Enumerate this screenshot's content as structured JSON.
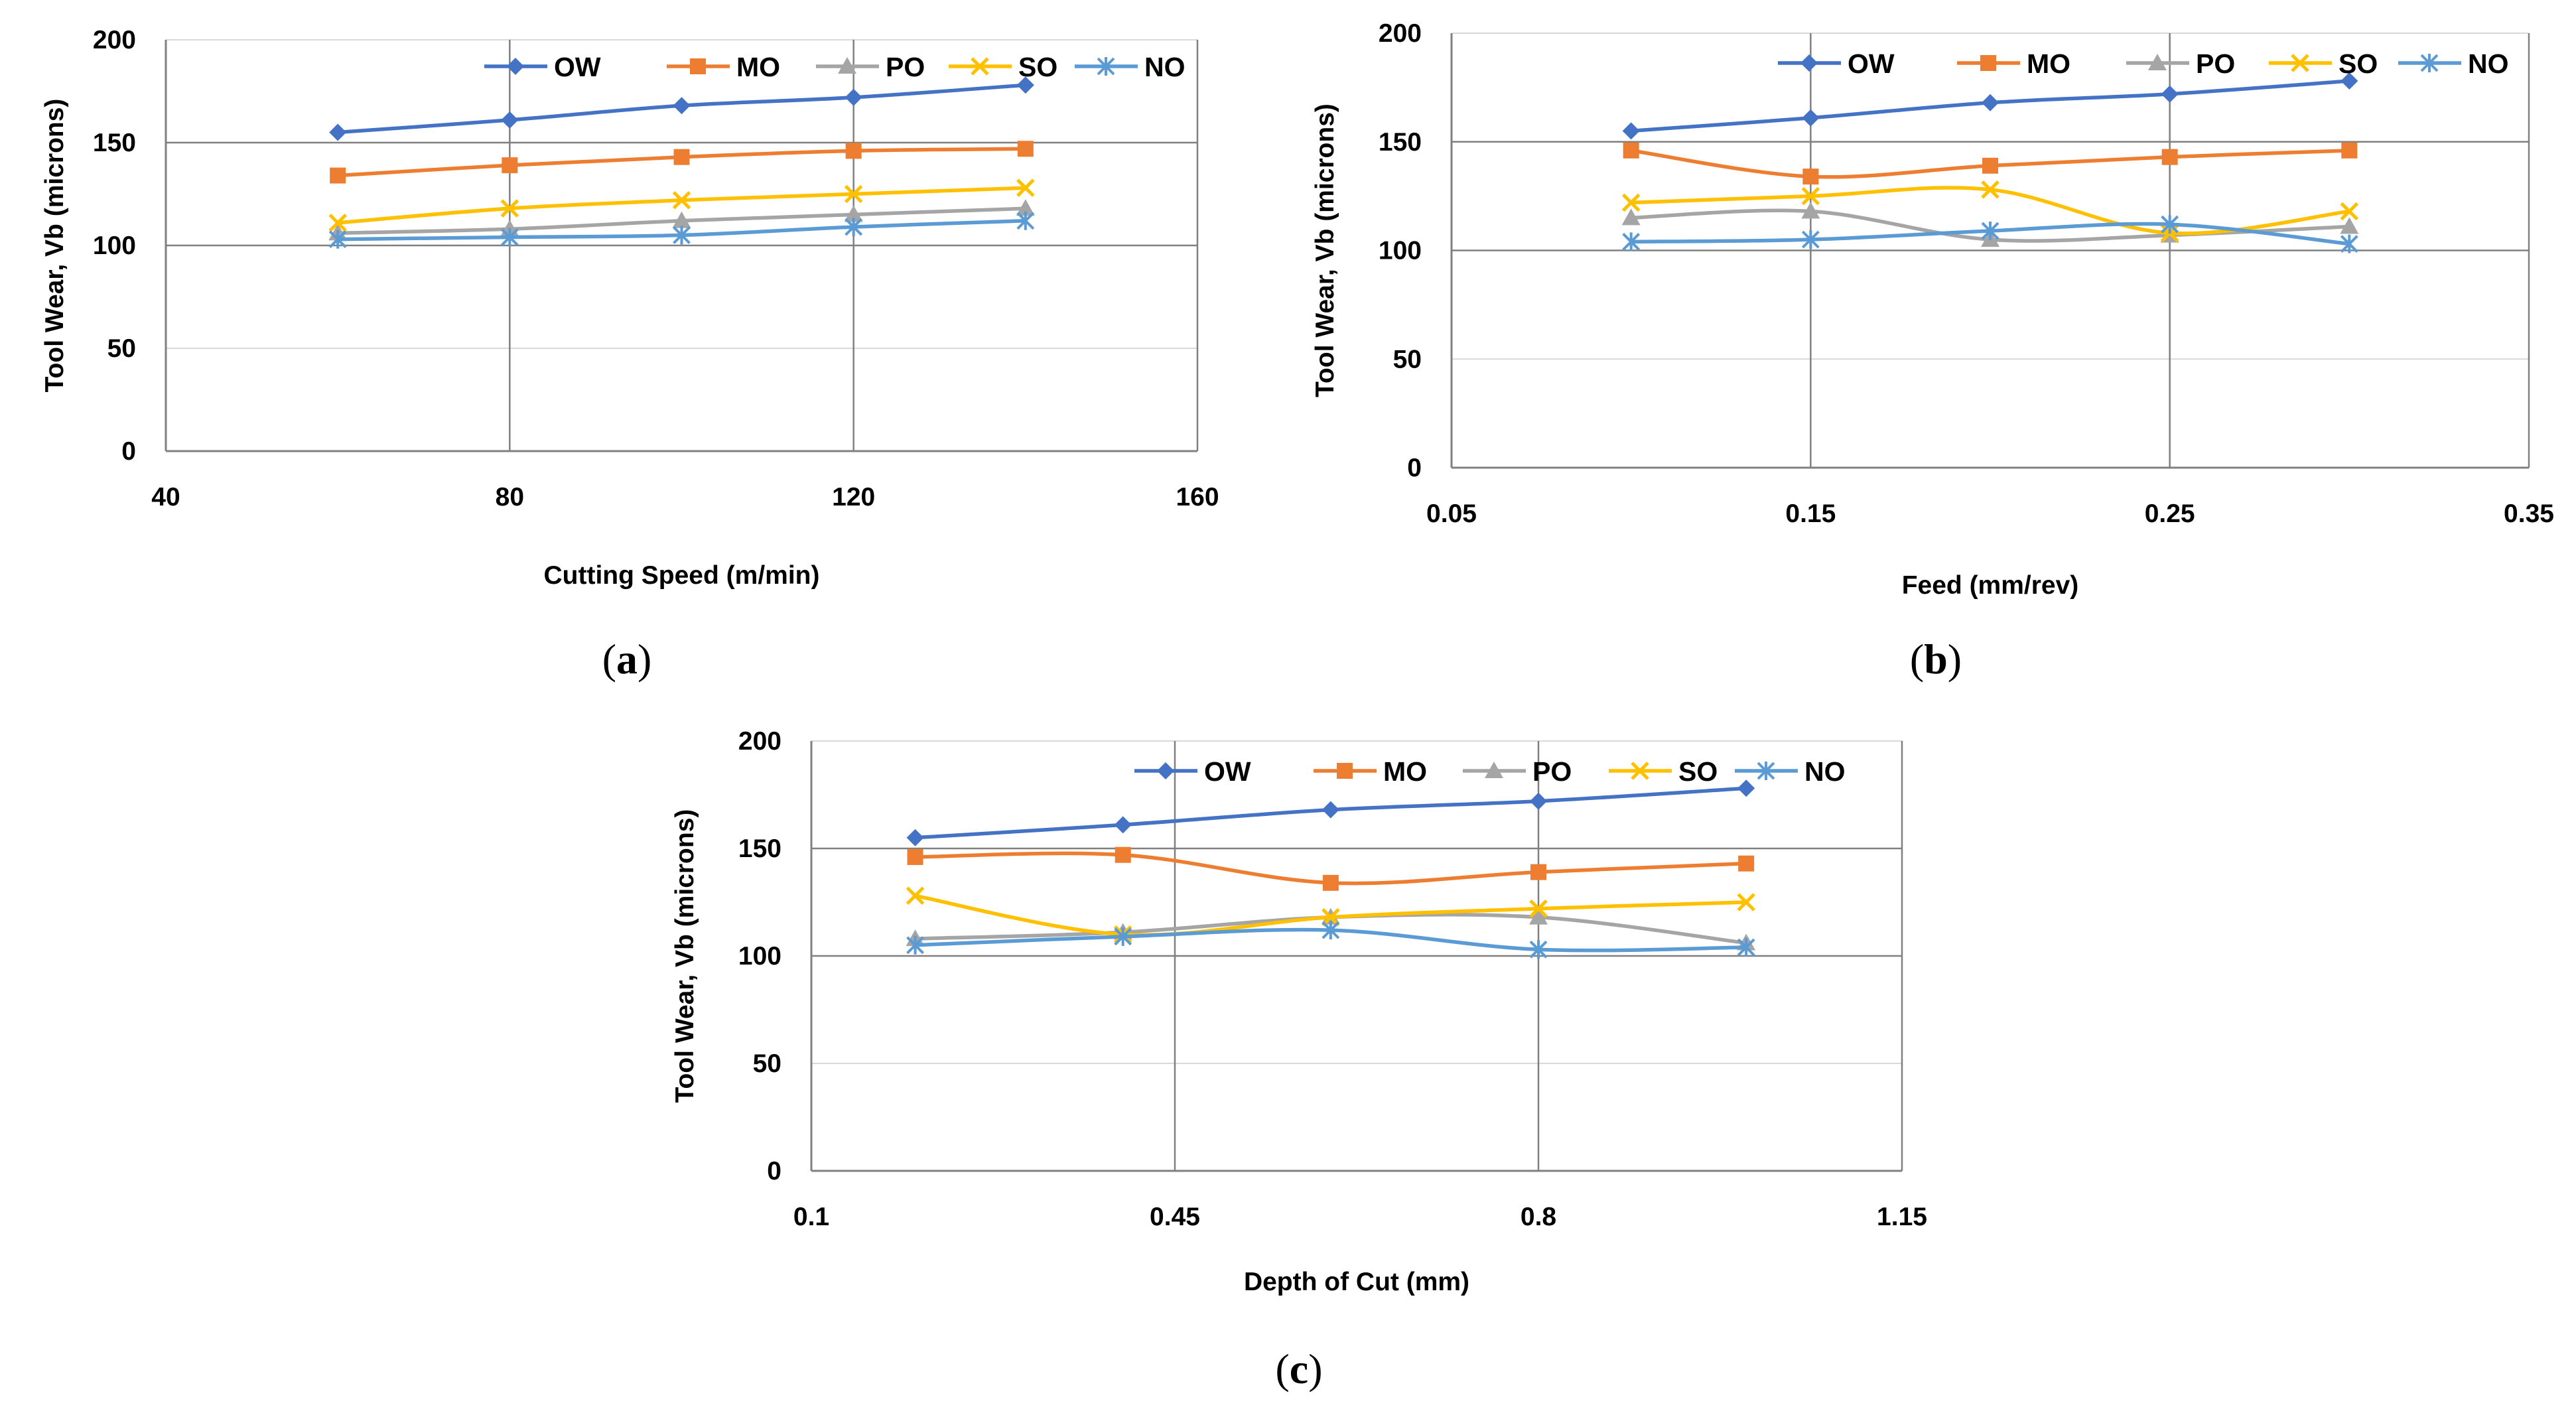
{
  "colors": {
    "OW": "#4472C4",
    "MO": "#ED7D31",
    "PO": "#A5A5A5",
    "SO": "#FFC000",
    "NO": "#5B9BD5",
    "grid": "#D9D9D9",
    "major_grid": "#808080"
  },
  "legend_order": [
    "OW",
    "MO",
    "PO",
    "SO",
    "NO"
  ],
  "markers": {
    "OW": "diamond",
    "MO": "square",
    "PO": "triangle",
    "SO": "x",
    "NO": "star"
  },
  "chart_data": [
    {
      "id": "a",
      "type": "line",
      "caption": "a",
      "xlabel": "Cutting Speed (m/min)",
      "ylabel": "Tool Wear, Vb (microns)",
      "xlim": [
        40,
        160
      ],
      "xticks": [
        "40",
        "80",
        "120",
        "160"
      ],
      "xtick_values": [
        40,
        80,
        120,
        160
      ],
      "ylim": [
        0,
        200
      ],
      "yticks": [
        "0",
        "50",
        "100",
        "150",
        "200"
      ],
      "ytick_values": [
        0,
        50,
        100,
        150,
        200
      ],
      "x": [
        60,
        80,
        100,
        120,
        140
      ],
      "series": [
        {
          "name": "OW",
          "values": [
            155,
            161,
            168,
            172,
            178
          ]
        },
        {
          "name": "MO",
          "values": [
            134,
            139,
            143,
            146,
            147
          ]
        },
        {
          "name": "PO",
          "values": [
            106,
            108,
            112,
            115,
            118
          ]
        },
        {
          "name": "SO",
          "values": [
            111,
            118,
            122,
            125,
            128
          ]
        },
        {
          "name": "NO",
          "values": [
            103,
            104,
            105,
            109,
            112
          ]
        }
      ]
    },
    {
      "id": "b",
      "type": "line",
      "caption": "b",
      "xlabel": "Feed (mm/rev)",
      "ylabel": "Tool Wear, Vb  (microns)",
      "xlim": [
        0.05,
        0.35
      ],
      "xticks": [
        "0.05",
        "0.15",
        "0.25",
        "0.35"
      ],
      "xtick_values": [
        0.05,
        0.15,
        0.25,
        0.35
      ],
      "ylim": [
        0,
        200
      ],
      "yticks": [
        "0",
        "50",
        "100",
        "150",
        "200"
      ],
      "ytick_values": [
        0,
        50,
        100,
        150,
        200
      ],
      "x": [
        0.1,
        0.15,
        0.2,
        0.25,
        0.3
      ],
      "series": [
        {
          "name": "OW",
          "values": [
            155,
            161,
            168,
            172,
            178
          ]
        },
        {
          "name": "MO",
          "values": [
            146,
            134,
            139,
            143,
            146
          ]
        },
        {
          "name": "PO",
          "values": [
            115,
            118,
            105,
            107,
            111
          ]
        },
        {
          "name": "SO",
          "values": [
            122,
            125,
            128,
            108,
            118
          ]
        },
        {
          "name": "NO",
          "values": [
            104,
            105,
            109,
            112,
            103
          ]
        }
      ]
    },
    {
      "id": "c",
      "type": "line",
      "caption": "c",
      "xlabel": "Depth of Cut (mm)",
      "ylabel": "Tool Wear, Vb  (microns)",
      "xlim": [
        0.1,
        1.15
      ],
      "xticks": [
        "0.1",
        "0.45",
        "0.8",
        "1.15"
      ],
      "xtick_values": [
        0.1,
        0.45,
        0.8,
        1.15
      ],
      "ylim": [
        0,
        200
      ],
      "yticks": [
        "0",
        "50",
        "100",
        "150",
        "200"
      ],
      "ytick_values": [
        0,
        50,
        100,
        150,
        200
      ],
      "x": [
        0.2,
        0.4,
        0.6,
        0.8,
        1.0
      ],
      "series": [
        {
          "name": "OW",
          "values": [
            155,
            161,
            168,
            172,
            178
          ]
        },
        {
          "name": "MO",
          "values": [
            146,
            147,
            134,
            139,
            143
          ]
        },
        {
          "name": "PO",
          "values": [
            108,
            111,
            118,
            118,
            106
          ]
        },
        {
          "name": "SO",
          "values": [
            128,
            110,
            118,
            122,
            125
          ]
        },
        {
          "name": "NO",
          "values": [
            105,
            109,
            112,
            103,
            104
          ]
        }
      ]
    }
  ]
}
